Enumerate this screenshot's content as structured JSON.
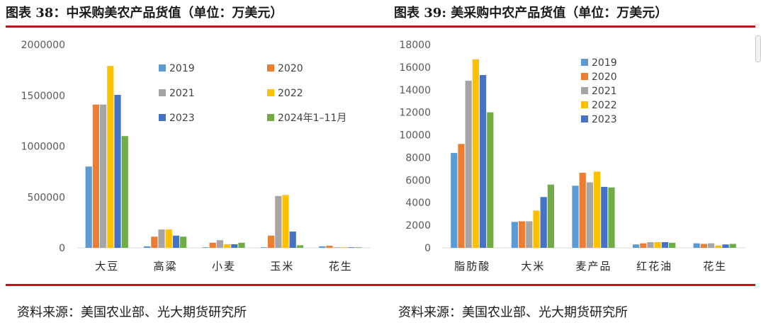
{
  "header": {
    "title_left": "图表 38：中采购美农产品货值（单位：万美元）",
    "title_right": "图表 39: 美采购中农产品货值（单位：万美元）"
  },
  "footer": {
    "source_left": "资料来源：美国农业部、光大期货研究所",
    "source_right": "资料来源：美国农业部、光大期货研究所"
  },
  "chart_data": [
    {
      "type": "bar",
      "title": "中采购美农产品货值（单位：万美元）",
      "categories": [
        "大豆",
        "高粱",
        "小麦",
        "玉米",
        "花生"
      ],
      "ylim": [
        0,
        2000000
      ],
      "yticks": [
        "0",
        "500000",
        "1000000",
        "1500000",
        "2000000"
      ],
      "grid": false,
      "legend_position": "top-right",
      "series": [
        {
          "name": "2019",
          "color": "#5b9bd5",
          "values": [
            800000,
            15000,
            2000,
            2000,
            15000
          ]
        },
        {
          "name": "2020",
          "color": "#ed7d31",
          "values": [
            1410000,
            110000,
            50000,
            120000,
            20000
          ]
        },
        {
          "name": "2021",
          "color": "#a5a5a5",
          "values": [
            1410000,
            180000,
            75000,
            510000,
            5000
          ]
        },
        {
          "name": "2022",
          "color": "#ffc000",
          "values": [
            1790000,
            180000,
            35000,
            520000,
            3000
          ]
        },
        {
          "name": "2023",
          "color": "#4472c4",
          "values": [
            1505000,
            120000,
            35000,
            160000,
            5000
          ]
        },
        {
          "name": "2024年1–11月",
          "color": "#70ad47",
          "values": [
            1100000,
            110000,
            50000,
            25000,
            3000
          ]
        }
      ]
    },
    {
      "type": "bar",
      "title": "美采购中农产品货值（单位：万美元）",
      "categories": [
        "脂肪酸",
        "大米",
        "麦产品",
        "红花油",
        "花生"
      ],
      "ylim": [
        0,
        18000
      ],
      "yticks": [
        "0",
        "2000",
        "4000",
        "6000",
        "8000",
        "10000",
        "12000",
        "14000",
        "16000",
        "18000"
      ],
      "grid": false,
      "legend_position": "top-right",
      "series": [
        {
          "name": "2019",
          "color": "#5b9bd5",
          "values": [
            8400,
            2300,
            5500,
            300,
            400
          ]
        },
        {
          "name": "2020",
          "color": "#ed7d31",
          "values": [
            9200,
            2350,
            6650,
            400,
            350
          ]
        },
        {
          "name": "2021",
          "color": "#a5a5a5",
          "values": [
            14800,
            2350,
            5800,
            500,
            400
          ]
        },
        {
          "name": "2022",
          "color": "#ffc000",
          "values": [
            16700,
            3300,
            6750,
            500,
            200
          ]
        },
        {
          "name": "2023",
          "color": "#4472c4",
          "values": [
            15300,
            4500,
            5400,
            500,
            300
          ]
        },
        {
          "color": "#70ad47",
          "values": [
            12000,
            5600,
            5350,
            450,
            350
          ]
        }
      ]
    }
  ]
}
